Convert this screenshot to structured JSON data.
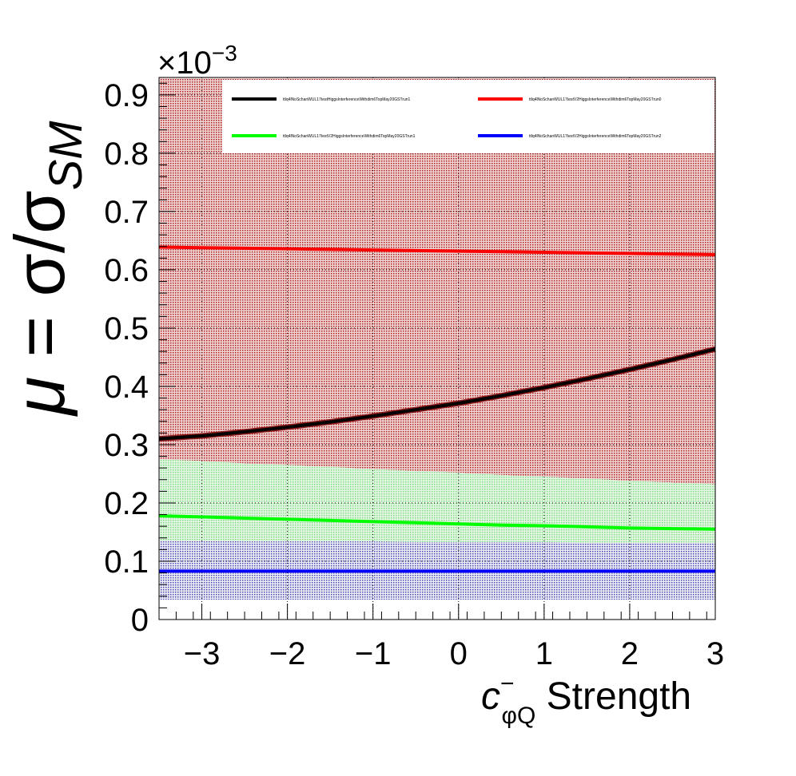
{
  "chart_data": {
    "type": "line",
    "title": "",
    "xlabel_main": "c",
    "xlabel_superscript": "−",
    "xlabel_subscript": "φQ",
    "xlabel_suffix": " Strength",
    "ylabel_mu": "μ",
    "ylabel_eq": " = σ/σ",
    "ylabel_sub": "SM",
    "y_exponent_prefix": "×10",
    "y_exponent_power": "−3",
    "xlim": [
      -3.5,
      3.0
    ],
    "ylim": [
      0,
      0.93
    ],
    "x_ticks": [
      {
        "value": -3,
        "label": "−3"
      },
      {
        "value": -2,
        "label": "−2"
      },
      {
        "value": -1,
        "label": "−1"
      },
      {
        "value": 0,
        "label": "0"
      },
      {
        "value": 1,
        "label": "1"
      },
      {
        "value": 2,
        "label": "2"
      },
      {
        "value": 3,
        "label": "3"
      }
    ],
    "y_ticks": [
      {
        "value": 0,
        "label": "0"
      },
      {
        "value": 0.1,
        "label": "0.1"
      },
      {
        "value": 0.2,
        "label": "0.2"
      },
      {
        "value": 0.3,
        "label": "0.3"
      },
      {
        "value": 0.4,
        "label": "0.4"
      },
      {
        "value": 0.5,
        "label": "0.5"
      },
      {
        "value": 0.6,
        "label": "0.6"
      },
      {
        "value": 0.7,
        "label": "0.7"
      },
      {
        "value": 0.8,
        "label": "0.8"
      },
      {
        "value": 0.9,
        "label": "0.9"
      }
    ],
    "grid": true,
    "legend_position": "top",
    "series": [
      {
        "name": "ttlq4lNoSchanWUL17testHiggsInterferenceWithdim6TopMay20GSTrun1",
        "color": "#000000",
        "band_color": "#8b1a1a",
        "x": [
          -3.5,
          -3.0,
          -2.5,
          -2.0,
          -1.5,
          -1.0,
          -0.5,
          0.0,
          0.5,
          1.0,
          1.5,
          2.0,
          2.5,
          3.0
        ],
        "y": [
          0.31,
          0.315,
          0.322,
          0.33,
          0.339,
          0.349,
          0.36,
          0.371,
          0.384,
          0.398,
          0.413,
          0.429,
          0.446,
          0.464
        ],
        "band_low": [
          0.31,
          0.315,
          0.322,
          0.33,
          0.339,
          0.349,
          0.36,
          0.371,
          0.384,
          0.398,
          0.413,
          0.429,
          0.446,
          0.464
        ],
        "band_high": [
          0.31,
          0.315,
          0.322,
          0.33,
          0.339,
          0.349,
          0.36,
          0.371,
          0.384,
          0.398,
          0.413,
          0.429,
          0.446,
          0.464
        ]
      },
      {
        "name": "ttlq4lNoSchanWUL17testV2HiggsInterferenceWithdim6TopMay20GSTrun0",
        "color": "#ff0000",
        "band_color": "#cc3333",
        "x": [
          -3.5,
          -3.0,
          -2.5,
          -2.0,
          -1.5,
          -1.0,
          -0.5,
          0.0,
          0.5,
          1.0,
          1.5,
          2.0,
          2.5,
          3.0
        ],
        "y": [
          0.639,
          0.638,
          0.637,
          0.636,
          0.635,
          0.634,
          0.633,
          0.632,
          0.631,
          0.63,
          0.629,
          0.628,
          0.627,
          0.626
        ],
        "band_low": [
          0.275,
          0.272,
          0.268,
          0.265,
          0.262,
          0.258,
          0.255,
          0.252,
          0.248,
          0.245,
          0.242,
          0.238,
          0.235,
          0.232
        ],
        "band_high": [
          0.93,
          0.93,
          0.93,
          0.93,
          0.93,
          0.93,
          0.93,
          0.93,
          0.93,
          0.93,
          0.93,
          0.93,
          0.93,
          0.93
        ]
      },
      {
        "name": "ttlq4lNoSchanWUL17testV2HiggsInterferenceWithdim6TopMay20GSTrun1",
        "color": "#00ff00",
        "band_color": "#66dd66",
        "x": [
          -3.5,
          -3.0,
          -2.5,
          -2.0,
          -1.5,
          -1.0,
          -0.5,
          0.0,
          0.5,
          1.0,
          1.5,
          2.0,
          2.5,
          3.0
        ],
        "y": [
          0.178,
          0.176,
          0.174,
          0.172,
          0.17,
          0.168,
          0.166,
          0.164,
          0.162,
          0.161,
          0.159,
          0.157,
          0.156,
          0.155
        ],
        "band_low": [
          0.135,
          0.135,
          0.134,
          0.134,
          0.134,
          0.134,
          0.133,
          0.133,
          0.133,
          0.133,
          0.132,
          0.132,
          0.132,
          0.132
        ],
        "band_high": [
          0.275,
          0.272,
          0.268,
          0.265,
          0.262,
          0.258,
          0.255,
          0.252,
          0.248,
          0.245,
          0.242,
          0.238,
          0.235,
          0.232
        ]
      },
      {
        "name": "ttlq4lNoSchanWUL17testV2HiggsInterferenceWithdim6TopMay20GSTrun2",
        "color": "#0000ff",
        "band_color": "#3333bb",
        "x": [
          -3.5,
          -3.0,
          -2.5,
          -2.0,
          -1.5,
          -1.0,
          -0.5,
          0.0,
          0.5,
          1.0,
          1.5,
          2.0,
          2.5,
          3.0
        ],
        "y": [
          0.083,
          0.083,
          0.083,
          0.083,
          0.083,
          0.083,
          0.083,
          0.083,
          0.083,
          0.083,
          0.083,
          0.083,
          0.083,
          0.083
        ],
        "band_low": [
          0.034,
          0.034,
          0.034,
          0.034,
          0.034,
          0.034,
          0.034,
          0.034,
          0.034,
          0.034,
          0.034,
          0.034,
          0.034,
          0.034
        ],
        "band_high": [
          0.135,
          0.135,
          0.134,
          0.134,
          0.134,
          0.134,
          0.133,
          0.133,
          0.133,
          0.133,
          0.132,
          0.132,
          0.132,
          0.132
        ]
      }
    ]
  }
}
